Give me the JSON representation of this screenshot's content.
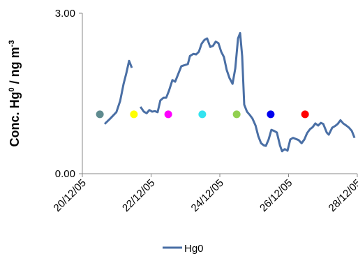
{
  "chart_data": {
    "type": "line",
    "ylabel": [
      "Conc. Hg",
      "0",
      " / ng m",
      "-3"
    ],
    "xlim": [
      20,
      28
    ],
    "xticks": [
      {
        "value": 20,
        "label": "20/12/05"
      },
      {
        "value": 22,
        "label": "22/12/05"
      },
      {
        "value": 24,
        "label": "24/12/05"
      },
      {
        "value": 26,
        "label": "26/12/05"
      },
      {
        "value": 28,
        "label": "28/12/05"
      }
    ],
    "ylim": [
      0,
      3
    ],
    "yticks": [
      {
        "value": 0,
        "label": "0.00"
      },
      {
        "value": 3,
        "label": "3.00"
      }
    ],
    "x": [
      20.65,
      20.81,
      20.99,
      21.1,
      21.2,
      21.28,
      21.36,
      21.44,
      21.6,
      21.69,
      21.79,
      21.87,
      21.95,
      22.03,
      22.11,
      22.19,
      22.27,
      22.36,
      22.44,
      22.52,
      22.62,
      22.7,
      22.8,
      22.88,
      22.98,
      23.07,
      23.13,
      23.23,
      23.31,
      23.39,
      23.47,
      23.55,
      23.63,
      23.72,
      23.8,
      23.88,
      23.96,
      24.04,
      24.12,
      24.2,
      24.28,
      24.37,
      24.45,
      24.53,
      24.59,
      24.65,
      24.71,
      24.79,
      24.87,
      24.95,
      25.04,
      25.12,
      25.2,
      25.28,
      25.34,
      25.42,
      25.5,
      25.58,
      25.66,
      25.75,
      25.81,
      25.89,
      25.97,
      26.05,
      26.13,
      26.21,
      26.29,
      26.38,
      26.46,
      26.54,
      26.62,
      26.7,
      26.78,
      26.86,
      26.94,
      27.01,
      27.11,
      27.17,
      27.27,
      27.35,
      27.43,
      27.51,
      27.59,
      27.68,
      27.76,
      27.84,
      27.92
    ],
    "series": [
      {
        "name": "Hg0",
        "color": "#4a6fa5",
        "values": [
          0.93,
          1.03,
          1.15,
          1.36,
          1.68,
          1.88,
          2.11,
          1.98,
          null,
          1.25,
          1.16,
          1.13,
          1.19,
          1.16,
          1.17,
          1.15,
          1.37,
          1.42,
          1.42,
          1.55,
          1.75,
          1.72,
          1.88,
          2.01,
          2.03,
          2.05,
          2.2,
          2.24,
          2.23,
          2.28,
          2.43,
          2.5,
          2.53,
          2.37,
          2.39,
          2.47,
          2.44,
          2.28,
          2.18,
          1.94,
          1.79,
          1.68,
          1.97,
          2.53,
          2.63,
          2.2,
          1.29,
          1.16,
          1.1,
          1.03,
          0.9,
          0.7,
          0.57,
          0.53,
          0.52,
          0.64,
          0.82,
          0.8,
          0.77,
          0.53,
          0.42,
          0.46,
          0.43,
          0.64,
          0.67,
          0.65,
          0.63,
          0.57,
          0.64,
          0.76,
          0.83,
          0.87,
          0.94,
          0.9,
          0.95,
          0.93,
          0.77,
          0.73,
          0.86,
          0.89,
          0.93,
          1.0,
          0.94,
          0.9,
          0.86,
          0.8,
          0.67
        ]
      }
    ],
    "points": [
      {
        "x": 20.51,
        "y": 1.11,
        "color": "#5f8b8f"
      },
      {
        "x": 21.5,
        "y": 1.11,
        "color": "#ffff00"
      },
      {
        "x": 22.5,
        "y": 1.11,
        "color": "#ff00ff"
      },
      {
        "x": 23.49,
        "y": 1.11,
        "color": "#33e3f0"
      },
      {
        "x": 24.49,
        "y": 1.11,
        "color": "#92d050"
      },
      {
        "x": 25.48,
        "y": 1.11,
        "color": "#0000ee"
      },
      {
        "x": 26.48,
        "y": 1.11,
        "color": "#ff0000"
      }
    ]
  }
}
